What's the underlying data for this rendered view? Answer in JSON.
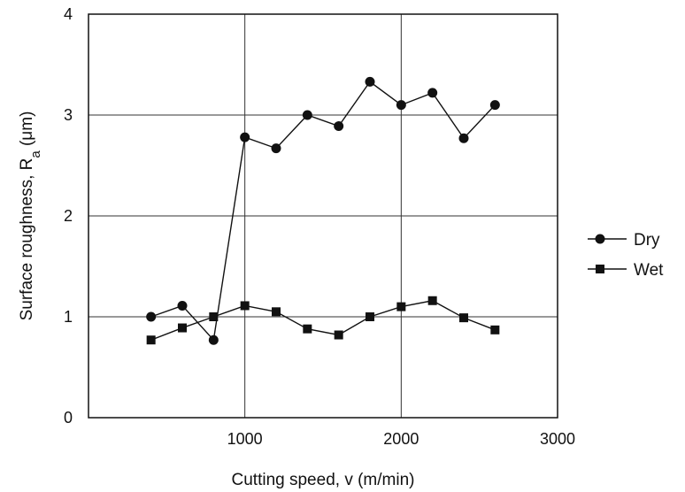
{
  "chart_data": {
    "type": "line",
    "xlabel": "Cutting speed, v (m/min)",
    "ylabel_main": "Surface roughness, R",
    "ylabel_sub": "a",
    "ylabel_unit": " (μm)",
    "xlim": [
      0,
      3000
    ],
    "ylim": [
      0,
      4
    ],
    "xticks": [
      1000,
      2000,
      3000
    ],
    "yticks": [
      0,
      1,
      2,
      3,
      4
    ],
    "grid": true,
    "legend_position": "right",
    "series": [
      {
        "name": "Dry",
        "marker": "circle",
        "x": [
          400,
          600,
          800,
          1000,
          1200,
          1400,
          1600,
          1800,
          2000,
          2200,
          2400,
          2600
        ],
        "y": [
          1.0,
          1.11,
          0.77,
          2.78,
          2.67,
          3.0,
          2.89,
          3.33,
          3.1,
          3.22,
          2.77,
          3.1
        ]
      },
      {
        "name": "Wet",
        "marker": "square",
        "x": [
          400,
          600,
          800,
          1000,
          1200,
          1400,
          1600,
          1800,
          2000,
          2200,
          2400,
          2600
        ],
        "y": [
          0.77,
          0.89,
          1.0,
          1.11,
          1.05,
          0.88,
          0.82,
          1.0,
          1.1,
          1.16,
          0.99,
          0.87
        ]
      }
    ]
  }
}
